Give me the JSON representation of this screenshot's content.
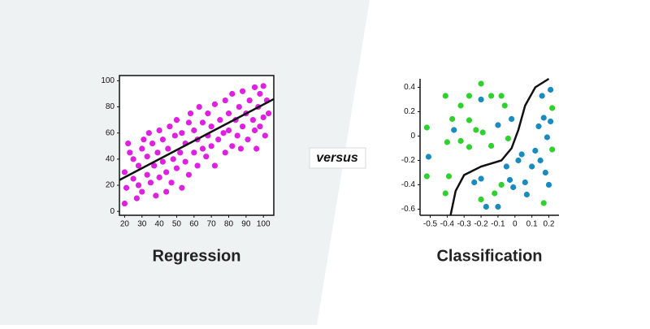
{
  "divider_label": "versus",
  "chart_data": [
    {
      "type": "scatter",
      "title": "Regression",
      "xlim": [
        17,
        106
      ],
      "ylim": [
        -3,
        104
      ],
      "xticks": [
        20,
        30,
        40,
        50,
        60,
        70,
        80,
        90,
        100
      ],
      "yticks": [
        0,
        20,
        40,
        60,
        80,
        100
      ],
      "series": [
        {
          "type": "scatter",
          "color": "#e020e0",
          "x": [
            20,
            21,
            20,
            23,
            22,
            25,
            25,
            27,
            28,
            28,
            30,
            30,
            31,
            33,
            33,
            34,
            35,
            36,
            37,
            38,
            39,
            40,
            40,
            42,
            42,
            44,
            44,
            45,
            46,
            47,
            48,
            49,
            50,
            50,
            52,
            53,
            53,
            55,
            55,
            57,
            57,
            58,
            60,
            60,
            62,
            62,
            63,
            65,
            65,
            67,
            68,
            68,
            70,
            70,
            72,
            72,
            74,
            75,
            77,
            78,
            78,
            80,
            80,
            82,
            82,
            84,
            85,
            86,
            87,
            88,
            88,
            90,
            91,
            92,
            94,
            95,
            95,
            96,
            97,
            98,
            98,
            100,
            100,
            101,
            102,
            103
          ],
          "values": [
            6,
            18,
            30,
            45,
            52,
            25,
            40,
            10,
            20,
            35,
            15,
            48,
            55,
            28,
            42,
            60,
            22,
            52,
            35,
            12,
            45,
            26,
            62,
            38,
            55,
            15,
            30,
            48,
            65,
            22,
            40,
            58,
            33,
            70,
            45,
            18,
            60,
            38,
            52,
            28,
            68,
            75,
            45,
            62,
            35,
            55,
            80,
            48,
            68,
            42,
            58,
            75,
            50,
            65,
            35,
            82,
            55,
            70,
            60,
            45,
            85,
            62,
            75,
            50,
            90,
            70,
            58,
            80,
            48,
            65,
            92,
            75,
            55,
            85,
            70,
            62,
            95,
            48,
            80,
            90,
            65,
            72,
            96,
            58,
            85,
            75
          ]
        },
        {
          "type": "line",
          "color": "#111111",
          "x": [
            17,
            106
          ],
          "values": [
            24,
            86
          ]
        }
      ]
    },
    {
      "type": "scatter",
      "title": "Classification",
      "xlim": [
        -0.56,
        0.26
      ],
      "ylim": [
        -0.65,
        0.47
      ],
      "xticks": [
        -0.5,
        -0.4,
        -0.3,
        -0.2,
        -0.1,
        0,
        0.1,
        0.2
      ],
      "yticks": [
        0.4,
        0.2,
        0,
        -0.2,
        -0.4,
        -0.6
      ],
      "series": [
        {
          "type": "scatter",
          "color": "#2ed12e",
          "x": [
            -0.52,
            -0.41,
            -0.37,
            -0.32,
            -0.27,
            -0.2,
            -0.19,
            -0.14,
            -0.08,
            -0.06,
            -0.27,
            -0.23,
            -0.32,
            -0.4,
            -0.52,
            -0.39,
            -0.27,
            -0.41,
            -0.2,
            -0.12,
            -0.04,
            -0.08,
            0.17,
            0.22,
            0.22,
            -0.14
          ],
          "values": [
            0.07,
            0.33,
            0.14,
            0.25,
            0.33,
            0.43,
            0.03,
            0.33,
            0.33,
            0.25,
            0.13,
            0.05,
            -0.04,
            -0.05,
            -0.33,
            -0.33,
            -0.09,
            -0.47,
            -0.52,
            -0.47,
            -0.02,
            -0.4,
            -0.55,
            -0.11,
            0.23,
            -0.08
          ]
        },
        {
          "type": "scatter",
          "color": "#1a8bbf",
          "x": [
            -0.51,
            -0.36,
            -0.2,
            -0.1,
            -0.02,
            -0.24,
            -0.2,
            -0.17,
            -0.1,
            -0.01,
            0.06,
            0.07,
            0.1,
            0.04,
            0.15,
            0.18,
            0.19,
            0.14,
            0.17,
            0.21,
            0.16,
            0.21,
            0.12,
            0.02,
            -0.05,
            0.2,
            -0.03
          ],
          "values": [
            -0.17,
            0.05,
            0.3,
            0.09,
            0.14,
            -0.38,
            -0.35,
            -0.58,
            -0.58,
            -0.42,
            -0.38,
            -0.48,
            -0.25,
            -0.15,
            -0.2,
            -0.3,
            -0.01,
            0.08,
            0.15,
            0.12,
            0.33,
            0.38,
            -0.12,
            -0.2,
            -0.25,
            -0.4,
            -0.36
          ]
        },
        {
          "type": "line",
          "color": "#111111",
          "x": [
            -0.38,
            -0.35,
            -0.3,
            -0.2,
            -0.08,
            -0.02,
            0.02,
            0.06,
            0.12,
            0.2
          ],
          "values": [
            -0.65,
            -0.45,
            -0.32,
            -0.25,
            -0.2,
            -0.1,
            0.05,
            0.25,
            0.4,
            0.47
          ]
        }
      ]
    }
  ]
}
